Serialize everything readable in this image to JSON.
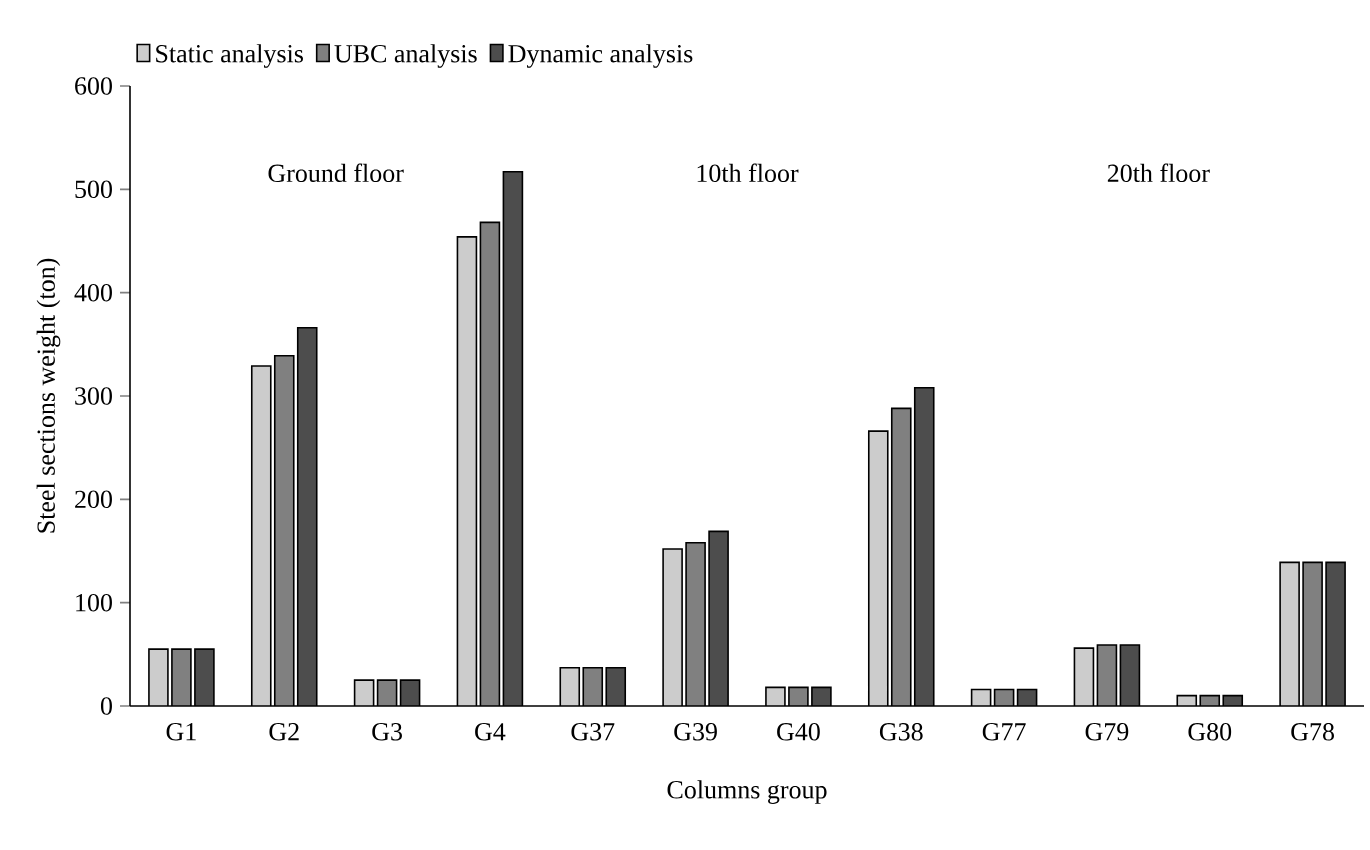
{
  "chart_data": {
    "type": "bar",
    "xlabel": "Columns group",
    "ylabel": "Steel sections weight (ton)",
    "categories": [
      "G1",
      "G2",
      "G3",
      "G4",
      "G37",
      "G39",
      "G40",
      "G38",
      "G77",
      "G79",
      "G80",
      "G78"
    ],
    "series": [
      {
        "name": "Static analysis",
        "color": "#cccccc",
        "values": [
          55,
          329,
          25,
          454,
          37,
          152,
          18,
          266,
          16,
          56,
          10,
          139
        ]
      },
      {
        "name": "UBC analysis",
        "color": "#808080",
        "values": [
          55,
          339,
          25,
          468,
          37,
          158,
          18,
          288,
          16,
          59,
          10,
          139
        ]
      },
      {
        "name": "Dynamic analysis",
        "color": "#4d4d4d",
        "values": [
          55,
          366,
          25,
          517,
          37,
          169,
          18,
          308,
          16,
          59,
          10,
          139
        ]
      }
    ],
    "ylim": [
      0,
      600
    ],
    "yticks": [
      0,
      100,
      200,
      300,
      400,
      500,
      600
    ],
    "annotations": [
      "Ground floor",
      "10th floor",
      "20th floor"
    ],
    "grid": false,
    "legend": "top left"
  }
}
